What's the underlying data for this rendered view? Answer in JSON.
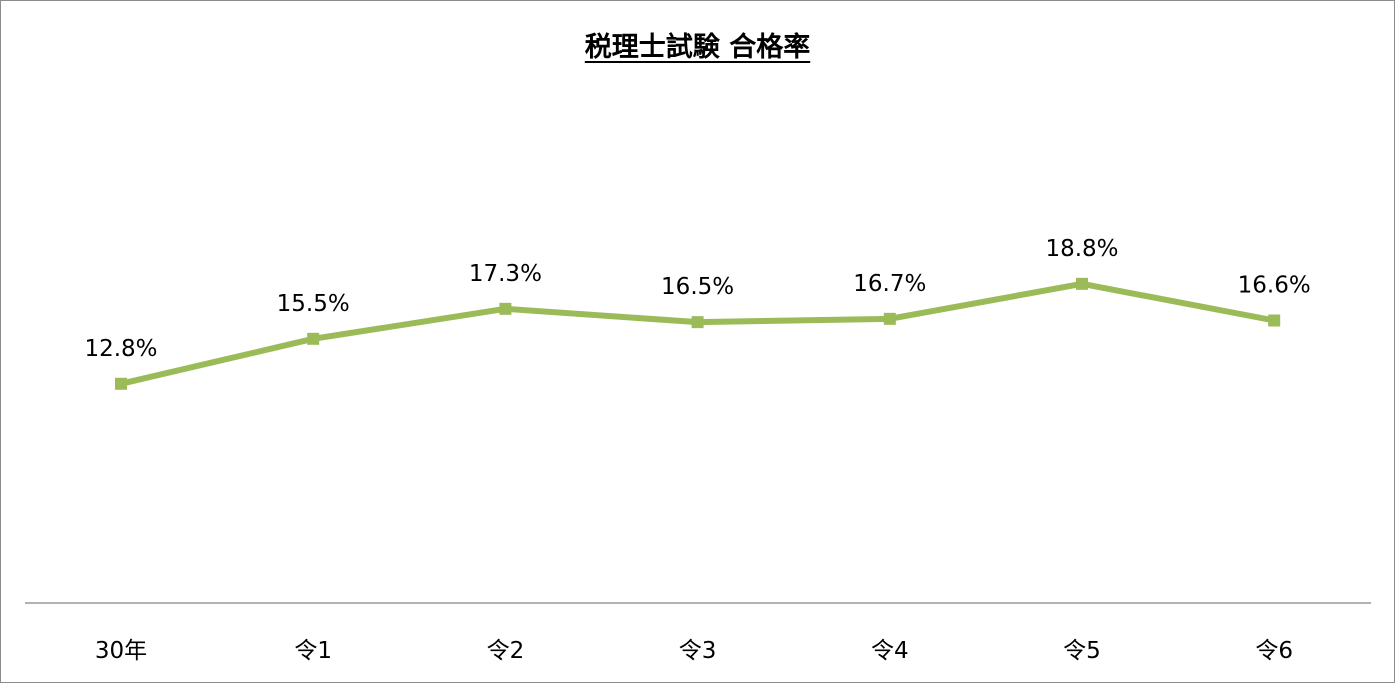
{
  "chart_data": {
    "type": "line",
    "title": "税理士試験 合格率",
    "categories": [
      "30年",
      "令1",
      "令2",
      "令3",
      "令4",
      "令5",
      "令6"
    ],
    "series": [
      {
        "values": [
          12.8,
          15.5,
          17.3,
          16.5,
          16.7,
          18.8,
          16.6
        ],
        "data_labels": [
          "12.8%",
          "15.5%",
          "17.3%",
          "16.5%",
          "16.7%",
          "18.8%",
          "16.6%"
        ],
        "color": "#9BBB59",
        "marker": "square"
      }
    ],
    "xlabel": "",
    "ylabel": "",
    "ylim": [
      0,
      35
    ],
    "grid": false,
    "legend": "none"
  }
}
